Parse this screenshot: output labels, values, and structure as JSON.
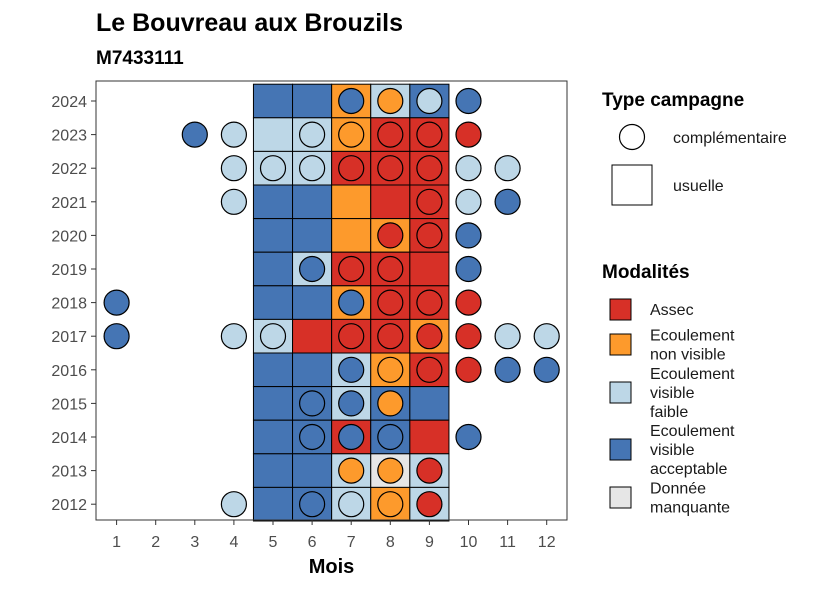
{
  "chart_data": {
    "type": "heatmap",
    "title": "Le Bouvreau aux Brouzils",
    "subtitle": "M7433111",
    "xlabel": "Mois",
    "ylabel": "",
    "x_ticks": [
      "1",
      "2",
      "3",
      "4",
      "5",
      "6",
      "7",
      "8",
      "9",
      "10",
      "11",
      "12"
    ],
    "y_ticks": [
      "2024",
      "2023",
      "2022",
      "2021",
      "2020",
      "2019",
      "2018",
      "2017",
      "2016",
      "2015",
      "2014",
      "2013",
      "2012"
    ],
    "grid": false,
    "legend_campagne": {
      "title": "Type campagne",
      "entries": [
        {
          "key": "complementaire",
          "label": "complémentaire",
          "shape": "circle"
        },
        {
          "key": "usuelle",
          "label": "usuelle",
          "shape": "square"
        }
      ]
    },
    "legend_modalites": {
      "title": "Modalités",
      "entries": [
        {
          "key": "A",
          "lines": [
            "Assec"
          ],
          "color": "#d73027"
        },
        {
          "key": "N",
          "lines": [
            "Ecoulement",
            "non visible"
          ],
          "color": "#fd9a2c"
        },
        {
          "key": "F",
          "lines": [
            "Ecoulement",
            "visible",
            "faible"
          ],
          "color": "#bdd7e7"
        },
        {
          "key": "V",
          "lines": [
            "Ecoulement",
            "visible",
            "acceptable"
          ],
          "color": "#4575b4"
        },
        {
          "key": "M",
          "lines": [
            "Donnée",
            "manquante"
          ],
          "color": "#e6e6e6"
        }
      ]
    },
    "usuelle": [
      {
        "year": 2024,
        "cells": {
          "5": "V",
          "6": "V",
          "7": "N",
          "8": "F",
          "9": "V"
        }
      },
      {
        "year": 2023,
        "cells": {
          "5": "F",
          "6": "F",
          "7": "N",
          "8": "A",
          "9": "A"
        }
      },
      {
        "year": 2022,
        "cells": {
          "5": "F",
          "6": "F",
          "7": "A",
          "8": "A",
          "9": "A"
        }
      },
      {
        "year": 2021,
        "cells": {
          "5": "V",
          "6": "V",
          "7": "N",
          "8": "A",
          "9": "A"
        }
      },
      {
        "year": 2020,
        "cells": {
          "5": "V",
          "6": "V",
          "7": "N",
          "8": "N",
          "9": "A"
        }
      },
      {
        "year": 2019,
        "cells": {
          "5": "V",
          "6": "F",
          "7": "A",
          "8": "A",
          "9": "A"
        }
      },
      {
        "year": 2018,
        "cells": {
          "5": "V",
          "6": "V",
          "7": "N",
          "8": "A",
          "9": "A"
        }
      },
      {
        "year": 2017,
        "cells": {
          "5": "F",
          "6": "A",
          "7": "A",
          "8": "A",
          "9": "N"
        }
      },
      {
        "year": 2016,
        "cells": {
          "5": "V",
          "6": "V",
          "7": "F",
          "8": "N",
          "9": "A"
        }
      },
      {
        "year": 2015,
        "cells": {
          "5": "V",
          "6": "V",
          "7": "F",
          "8": "V",
          "9": "V"
        }
      },
      {
        "year": 2014,
        "cells": {
          "5": "V",
          "6": "V",
          "7": "A",
          "8": "V",
          "9": "A"
        }
      },
      {
        "year": 2013,
        "cells": {
          "5": "V",
          "6": "V",
          "7": "F",
          "8": "M",
          "9": "F"
        }
      },
      {
        "year": 2012,
        "cells": {
          "5": "V",
          "6": "V",
          "7": "F",
          "8": "N",
          "9": "F"
        }
      }
    ],
    "complementaire": [
      {
        "year": 2024,
        "cells": {
          "7": "V",
          "8": "N",
          "9": "F",
          "10": "V"
        }
      },
      {
        "year": 2023,
        "cells": {
          "3": "V",
          "4": "F",
          "6": "F",
          "7": "N",
          "8": "A",
          "9": "A",
          "10": "A"
        }
      },
      {
        "year": 2022,
        "cells": {
          "4": "F",
          "5": "F",
          "6": "F",
          "7": "A",
          "8": "A",
          "9": "A",
          "10": "F",
          "11": "F"
        }
      },
      {
        "year": 2021,
        "cells": {
          "4": "F",
          "9": "A",
          "10": "F",
          "11": "V"
        }
      },
      {
        "year": 2020,
        "cells": {
          "8": "A",
          "9": "A",
          "10": "V"
        }
      },
      {
        "year": 2019,
        "cells": {
          "6": "V",
          "7": "A",
          "8": "A",
          "10": "V"
        }
      },
      {
        "year": 2018,
        "cells": {
          "1": "V",
          "7": "V",
          "8": "A",
          "9": "A",
          "10": "A"
        }
      },
      {
        "year": 2017,
        "cells": {
          "1": "V",
          "4": "F",
          "5": "F",
          "7": "A",
          "8": "A",
          "9": "A",
          "10": "A",
          "11": "F",
          "12": "F"
        }
      },
      {
        "year": 2016,
        "cells": {
          "7": "V",
          "8": "N",
          "9": "A",
          "10": "A",
          "11": "V",
          "12": "V"
        }
      },
      {
        "year": 2015,
        "cells": {
          "6": "V",
          "7": "V",
          "8": "N"
        }
      },
      {
        "year": 2014,
        "cells": {
          "6": "V",
          "7": "V",
          "8": "V",
          "10": "V"
        }
      },
      {
        "year": 2013,
        "cells": {
          "7": "N",
          "8": "N",
          "9": "A"
        }
      },
      {
        "year": 2012,
        "cells": {
          "4": "F",
          "6": "V",
          "7": "F",
          "8": "N",
          "9": "A"
        }
      }
    ]
  }
}
